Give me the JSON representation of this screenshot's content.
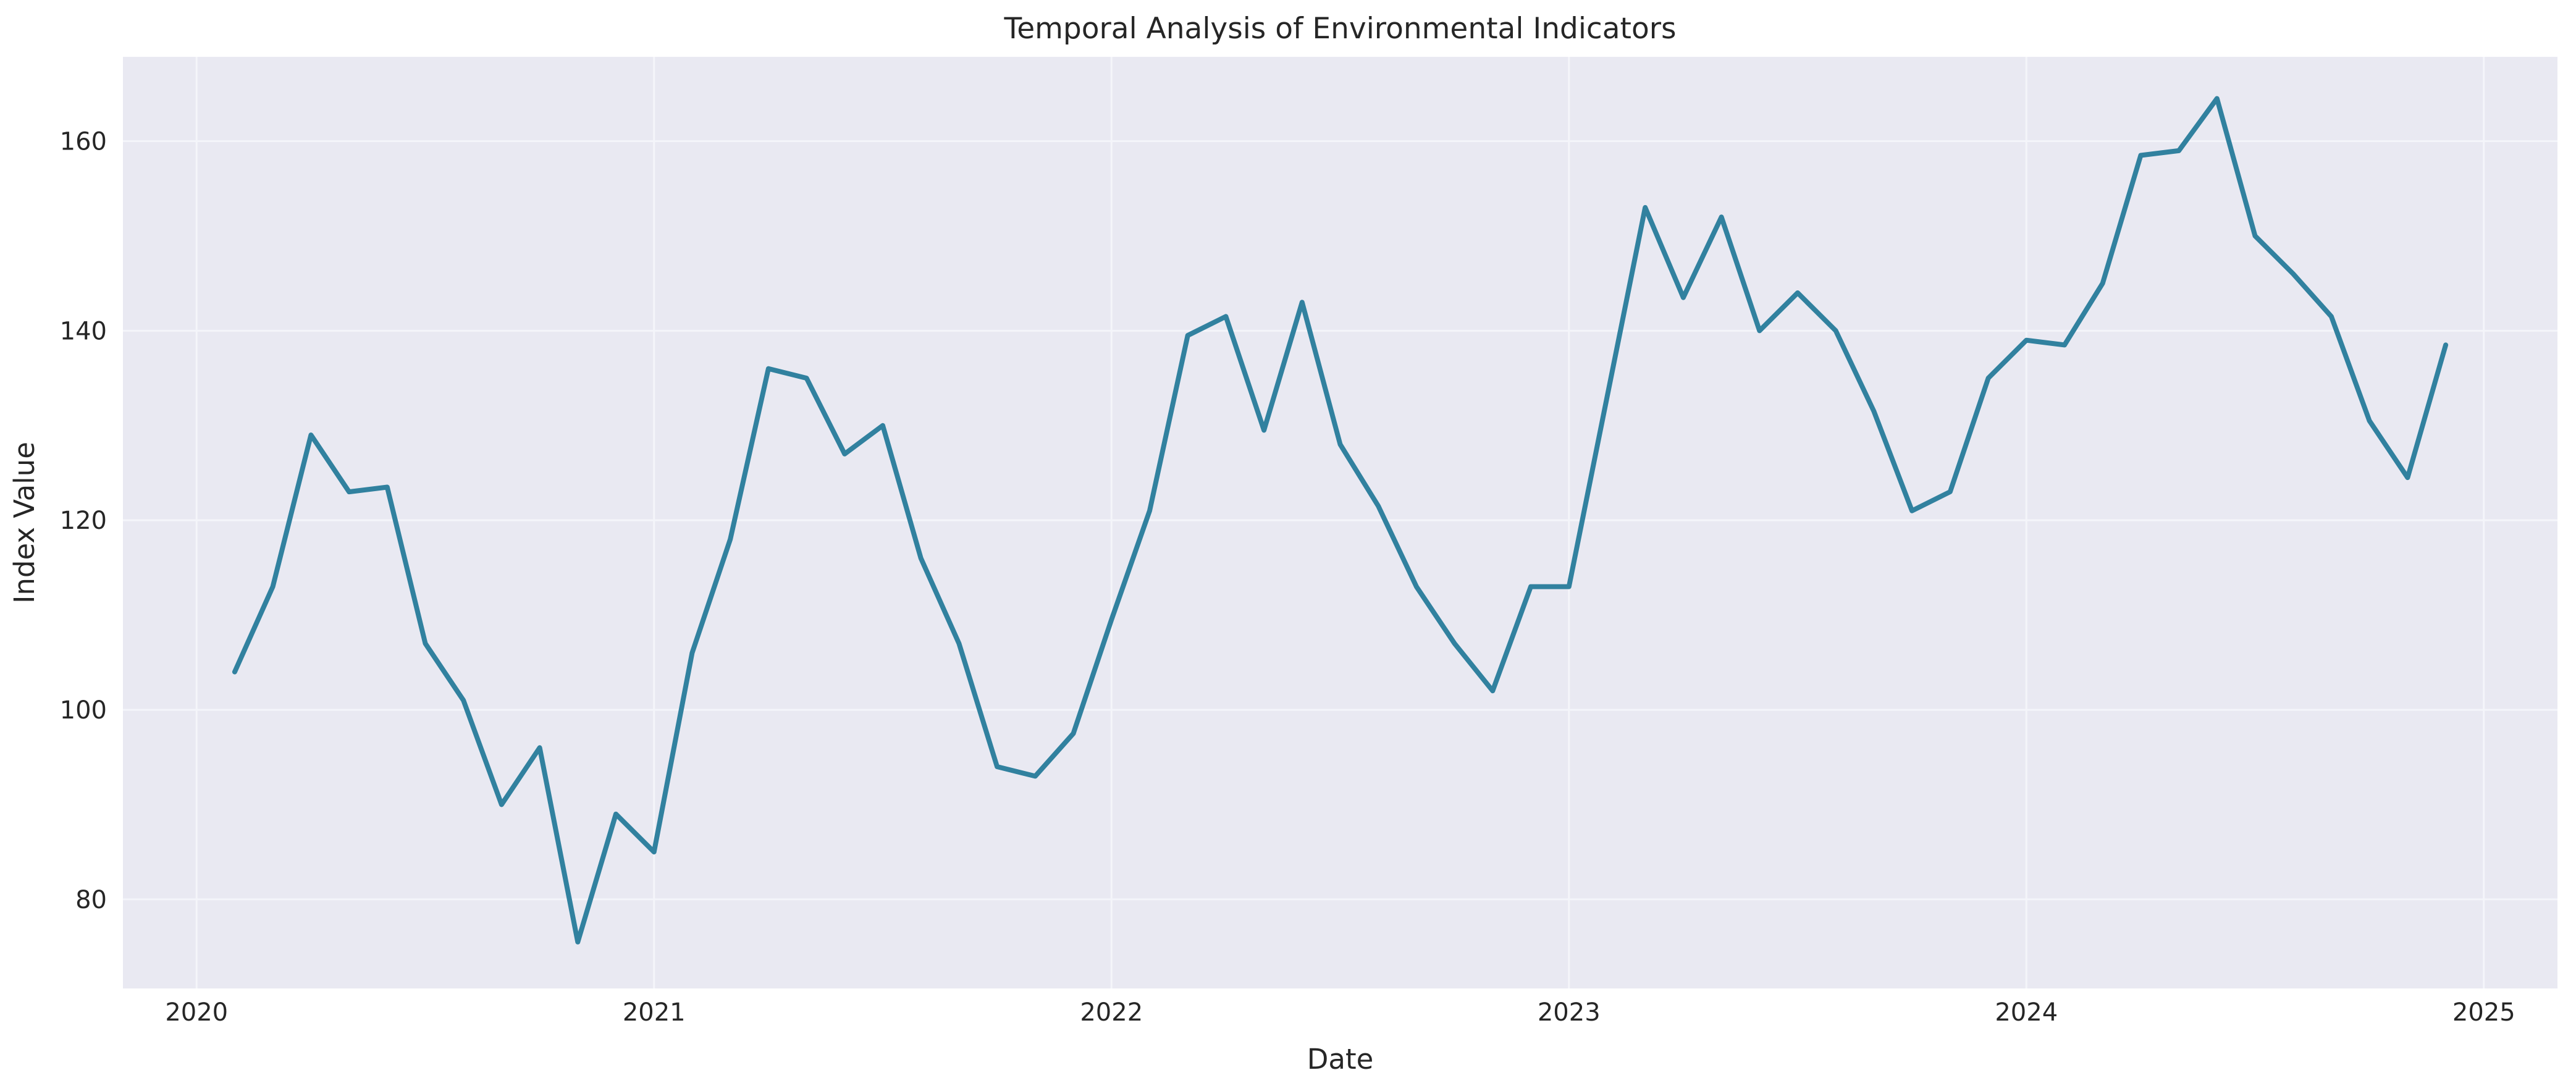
{
  "chart_data": {
    "type": "line",
    "title": "Temporal Analysis of Environmental Indicators",
    "xlabel": "Date",
    "ylabel": "Index Value",
    "x": [
      "2020-01",
      "2020-02",
      "2020-03",
      "2020-04",
      "2020-05",
      "2020-06",
      "2020-07",
      "2020-08",
      "2020-09",
      "2020-10",
      "2020-11",
      "2020-12",
      "2021-01",
      "2021-02",
      "2021-03",
      "2021-04",
      "2021-05",
      "2021-06",
      "2021-07",
      "2021-08",
      "2021-09",
      "2021-10",
      "2021-11",
      "2021-12",
      "2022-01",
      "2022-02",
      "2022-03",
      "2022-04",
      "2022-05",
      "2022-06",
      "2022-07",
      "2022-08",
      "2022-09",
      "2022-10",
      "2022-11",
      "2022-12",
      "2023-01",
      "2023-02",
      "2023-03",
      "2023-04",
      "2023-05",
      "2023-06",
      "2023-07",
      "2023-08",
      "2023-09",
      "2023-10",
      "2023-11",
      "2023-12",
      "2024-01",
      "2024-02",
      "2024-03",
      "2024-04",
      "2024-05",
      "2024-06",
      "2024-07",
      "2024-08",
      "2024-09",
      "2024-10",
      "2024-11"
    ],
    "values": [
      104,
      113,
      129,
      123,
      123.5,
      107,
      101,
      90,
      96,
      75.5,
      89,
      85,
      106,
      118,
      136,
      135,
      127,
      130,
      116,
      107,
      94,
      93,
      97.5,
      109.5,
      121,
      139.5,
      141.5,
      129.5,
      143,
      128,
      121.5,
      113,
      107,
      102,
      113,
      113,
      133,
      153,
      143.5,
      152,
      140,
      144,
      140,
      131.5,
      121,
      123,
      135,
      139,
      138.5,
      145,
      158.5,
      159,
      164.5,
      150,
      146,
      141.5,
      130.5,
      124.5,
      138.5
    ],
    "xtick_labels": [
      "2020",
      "2021",
      "2022",
      "2023",
      "2024",
      "2025"
    ],
    "xtick_years": [
      2020,
      2021,
      2022,
      2023,
      2024,
      2025
    ],
    "ytick_labels": [
      "80",
      "100",
      "120",
      "140",
      "160"
    ],
    "ytick_values": [
      80,
      100,
      120,
      140,
      160
    ],
    "xlim_years": [
      2019.839,
      2025.161
    ],
    "ylim": [
      70.6,
      168.9
    ],
    "legend": "none",
    "grid": "on",
    "colors": {
      "line": "#31819f",
      "axes_background": "#e9e9f2",
      "grid_line": "#f4f5fa",
      "text": "#262626",
      "figure_background": "#ffffff"
    },
    "line_width": 8
  }
}
